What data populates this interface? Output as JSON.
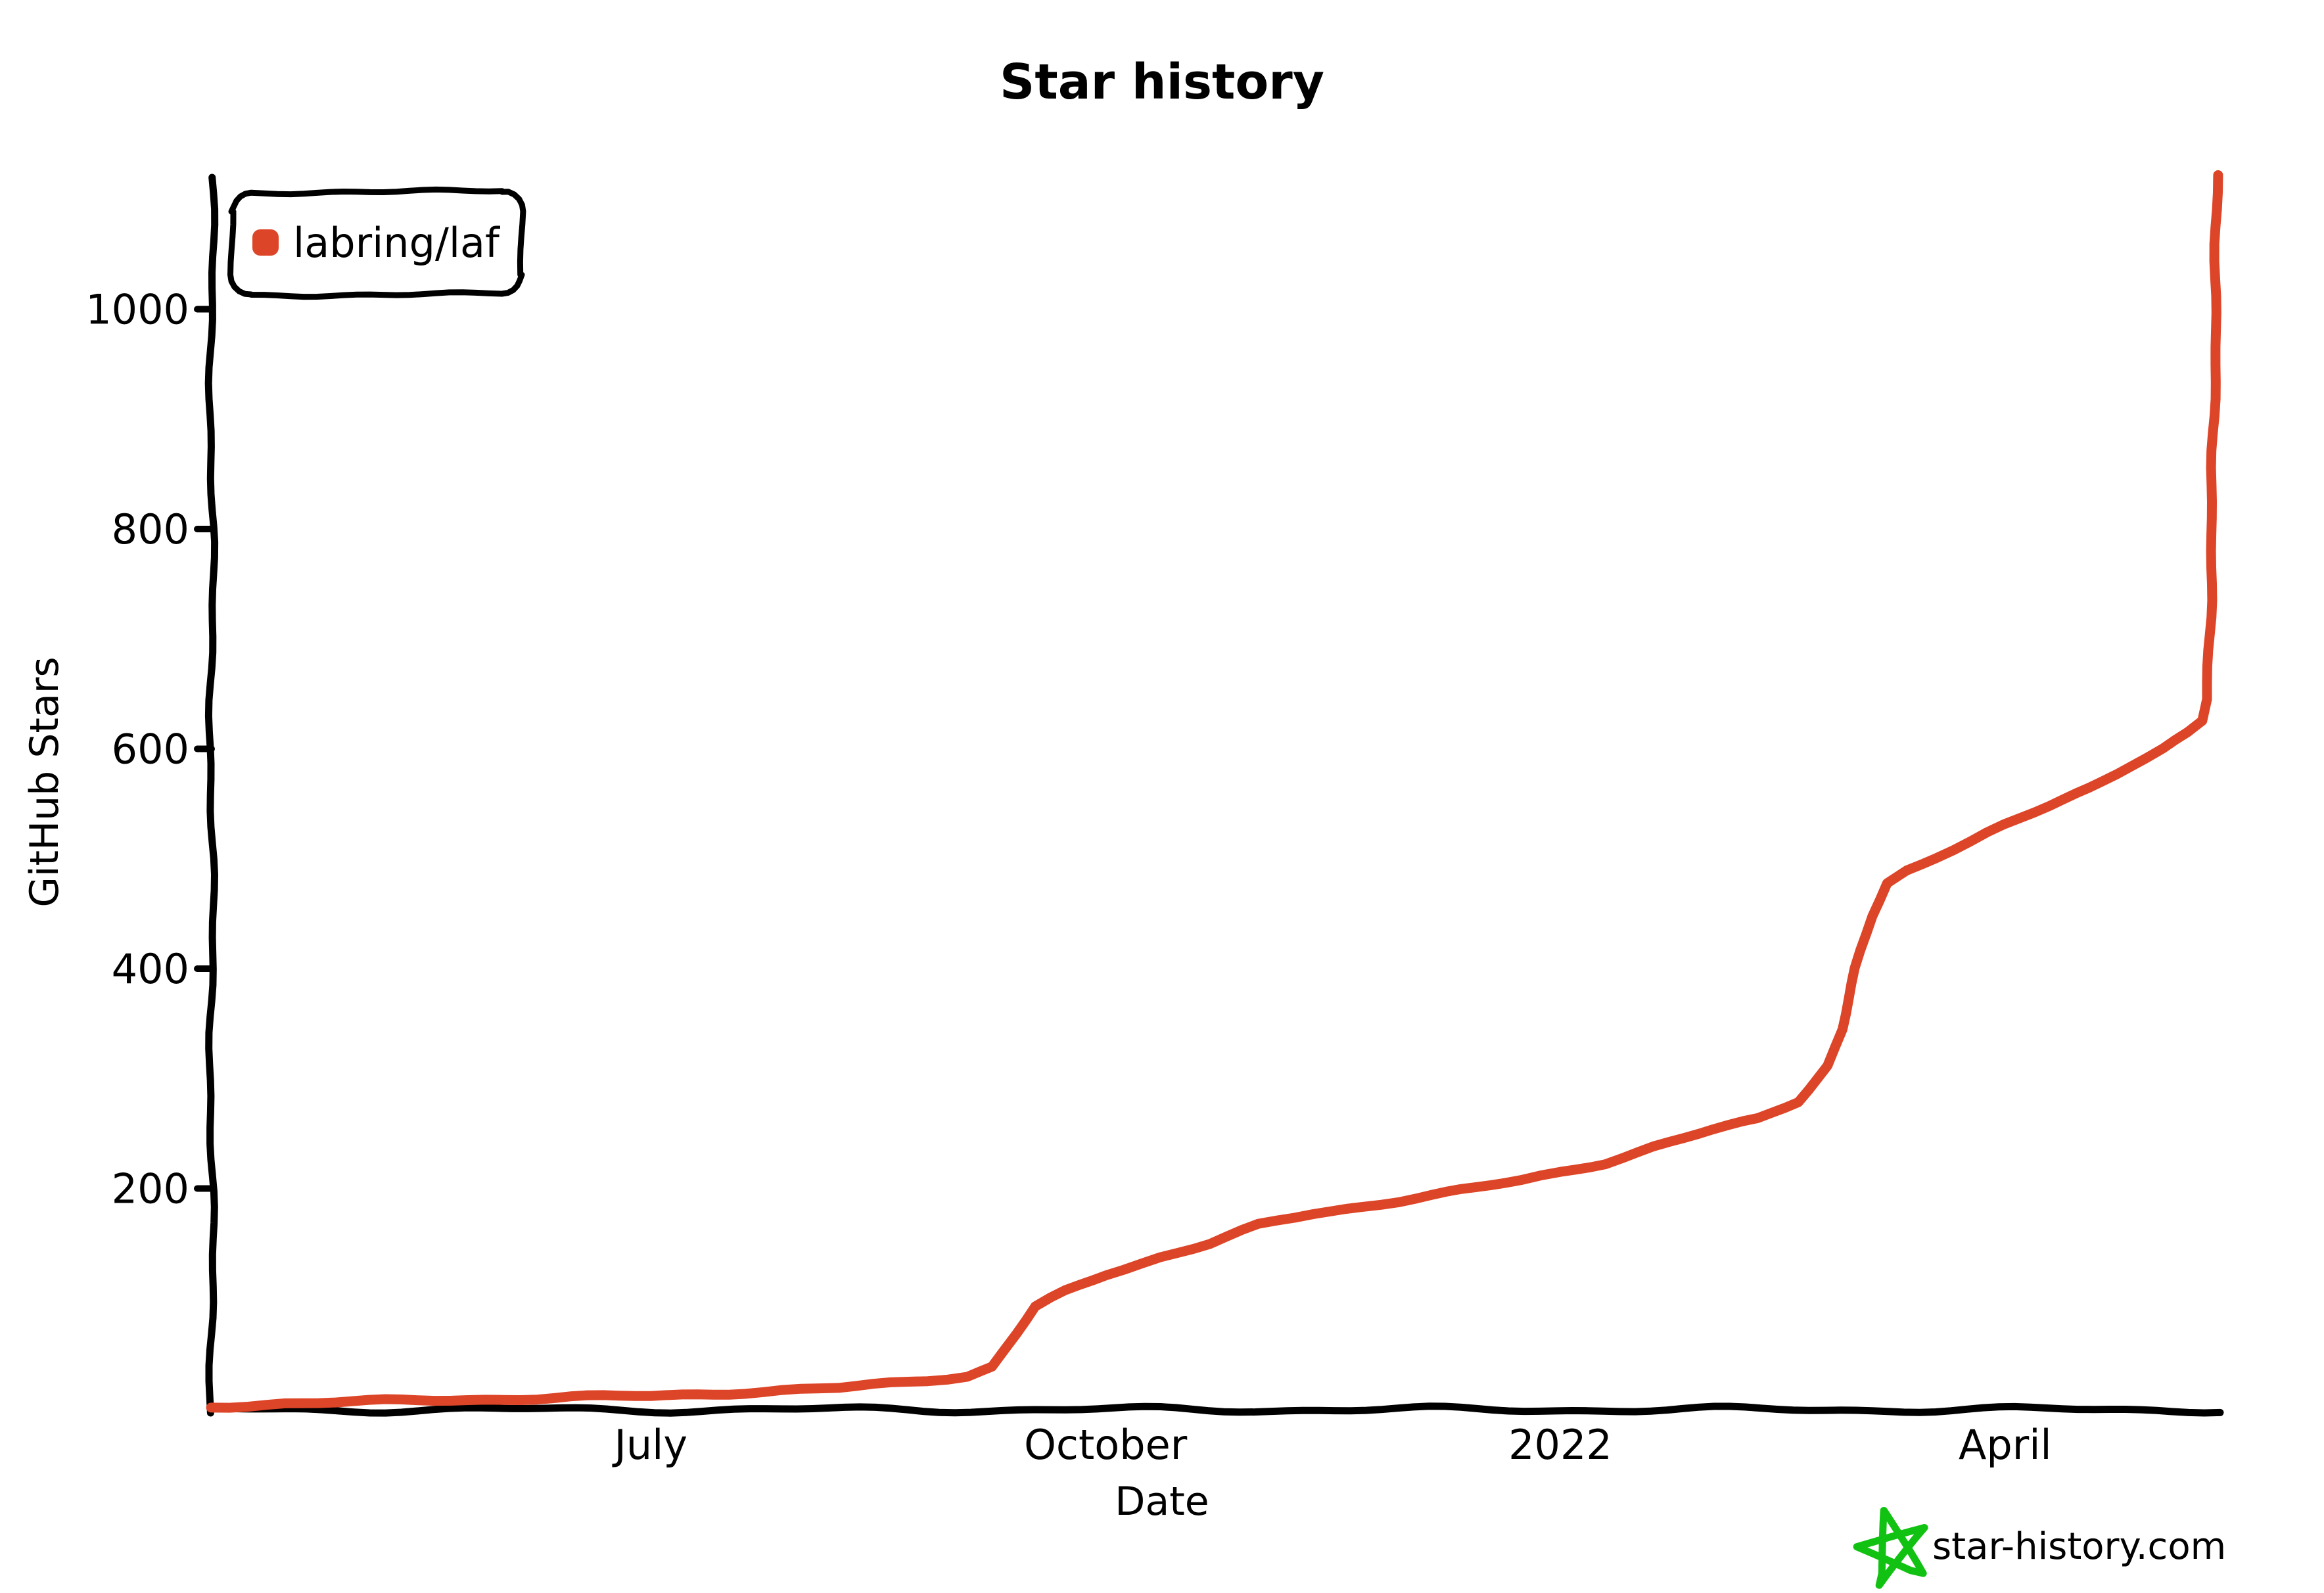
{
  "title": "Star history",
  "legend": {
    "label": "labring/laf",
    "marker_color": "#dd4528"
  },
  "axes": {
    "x_label": "Date",
    "y_label": "GitHub Stars"
  },
  "watermark": {
    "text": "star-history.com",
    "text_color": "#6b7280",
    "star_color": "#12c212"
  },
  "chart_data": {
    "type": "line",
    "title": "Star history",
    "xlabel": "Date",
    "ylabel": "GitHub Stars",
    "grid": false,
    "legend_position": "top-left",
    "x_axis": {
      "start": "2021-04-01",
      "end": "2022-05-15",
      "ticks": [
        {
          "date": "2021-07-01",
          "label": "July"
        },
        {
          "date": "2021-10-01",
          "label": "October"
        },
        {
          "date": "2022-01-01",
          "label": "2022"
        },
        {
          "date": "2022-04-01",
          "label": "April"
        }
      ]
    },
    "y_axis": {
      "min": 0,
      "max": 1150,
      "ticks": [
        {
          "value": 200,
          "label": "200"
        },
        {
          "value": 400,
          "label": "400"
        },
        {
          "value": 600,
          "label": "600"
        },
        {
          "value": 800,
          "label": "800"
        },
        {
          "value": 1000,
          "label": "1000"
        }
      ]
    },
    "series": [
      {
        "name": "labring/laf",
        "color": "#dd4528",
        "points": [
          [
            "2021-04-03",
            1
          ],
          [
            "2021-04-18",
            5
          ],
          [
            "2021-05-05",
            6
          ],
          [
            "2021-05-25",
            8
          ],
          [
            "2021-06-15",
            10
          ],
          [
            "2021-07-01",
            11
          ],
          [
            "2021-07-20",
            15
          ],
          [
            "2021-08-08",
            18
          ],
          [
            "2021-08-22",
            24
          ],
          [
            "2021-09-03",
            30
          ],
          [
            "2021-09-08",
            38
          ],
          [
            "2021-09-13",
            68
          ],
          [
            "2021-09-17",
            92
          ],
          [
            "2021-09-23",
            106
          ],
          [
            "2021-10-01",
            122
          ],
          [
            "2021-10-12",
            138
          ],
          [
            "2021-10-22",
            150
          ],
          [
            "2021-11-01",
            166
          ],
          [
            "2021-11-12",
            177
          ],
          [
            "2021-11-22",
            184
          ],
          [
            "2021-12-03",
            192
          ],
          [
            "2021-12-15",
            200
          ],
          [
            "2021-12-24",
            207
          ],
          [
            "2022-01-01",
            215
          ],
          [
            "2022-01-10",
            224
          ],
          [
            "2022-01-20",
            238
          ],
          [
            "2022-02-01",
            253
          ],
          [
            "2022-02-10",
            263
          ],
          [
            "2022-02-18",
            280
          ],
          [
            "2022-02-24",
            312
          ],
          [
            "2022-02-27",
            345
          ],
          [
            "2022-03-02",
            400
          ],
          [
            "2022-03-05",
            448
          ],
          [
            "2022-03-08",
            478
          ],
          [
            "2022-03-12",
            490
          ],
          [
            "2022-03-18",
            502
          ],
          [
            "2022-03-25",
            515
          ],
          [
            "2022-04-01",
            530
          ],
          [
            "2022-04-10",
            548
          ],
          [
            "2022-04-18",
            565
          ],
          [
            "2022-04-26",
            585
          ],
          [
            "2022-05-03",
            600
          ],
          [
            "2022-05-08",
            614
          ],
          [
            "2022-05-11",
            625
          ],
          [
            "2022-05-12",
            645
          ],
          [
            "2022-05-13",
            840
          ],
          [
            "2022-05-14",
            1122
          ]
        ]
      }
    ]
  }
}
